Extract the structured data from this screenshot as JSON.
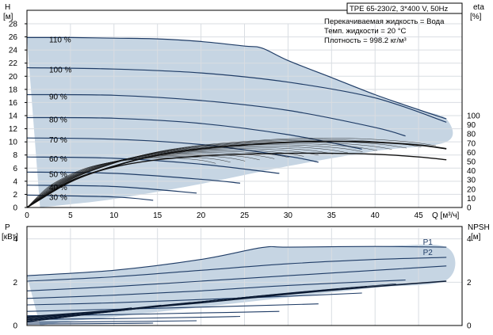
{
  "pump_model": "TPE 65-230/2, 3*400 V, 50Hz",
  "fluid_info": [
    "Перекачиваемая жидкость = Вода",
    "Темп. жидкости = 20 °C",
    "Плотность = 998.2 кг/м³"
  ],
  "colors": {
    "area_fill": "#c6d5e3",
    "curve": "#1f3c66",
    "efficiency_curve": "#111111",
    "grid": "#d9dde2",
    "axis": "#000000"
  },
  "chart_data": [
    {
      "type": "line",
      "name": "head-chart",
      "xlabel": "Q [м³/ч]",
      "ylabel_left": [
        "H",
        "[м]"
      ],
      "ylabel_right": [
        "eta",
        "[%]"
      ],
      "xlim": [
        0,
        50
      ],
      "ylim": [
        0,
        28
      ],
      "xticks": [
        0,
        5,
        10,
        15,
        20,
        25,
        30,
        35,
        40,
        45
      ],
      "yticks": [
        0,
        2,
        4,
        6,
        8,
        10,
        12,
        14,
        16,
        18,
        20,
        22,
        24,
        26,
        28
      ],
      "eta_ticks": [
        0,
        10,
        20,
        30,
        40,
        50,
        60,
        70,
        80,
        90,
        100
      ],
      "eta_range": [
        0,
        100
      ],
      "grid": true,
      "series": [
        {
          "name": "110 %",
          "x": [
            0,
            5,
            10,
            15,
            20,
            25,
            27,
            30,
            35,
            40,
            45,
            48.2
          ],
          "y": [
            25.9,
            25.9,
            25.8,
            25.7,
            25.3,
            24.6,
            24.3,
            22.4,
            19.8,
            17.2,
            14.9,
            13.5
          ]
        },
        {
          "name": "100 %",
          "x": [
            0,
            10,
            20,
            30,
            40,
            48.2
          ],
          "y": [
            21.3,
            21.1,
            20.5,
            19.1,
            16.7,
            13.0
          ]
        },
        {
          "name": "90 %",
          "x": [
            0,
            10,
            20,
            30,
            40,
            43.5
          ],
          "y": [
            17.2,
            17.1,
            16.3,
            14.8,
            12.2,
            10.9
          ]
        },
        {
          "name": "80 %",
          "x": [
            0,
            10,
            20,
            30,
            38.5
          ],
          "y": [
            13.7,
            13.6,
            12.8,
            11.1,
            8.9
          ]
        },
        {
          "name": "70 %",
          "x": [
            0,
            10,
            20,
            30,
            33.5
          ],
          "y": [
            10.6,
            10.4,
            9.6,
            7.8,
            6.9
          ]
        },
        {
          "name": "60 %",
          "x": [
            0,
            10,
            20,
            29
          ],
          "y": [
            7.7,
            7.5,
            6.6,
            5.2
          ]
        },
        {
          "name": "50 %",
          "x": [
            0,
            10,
            20,
            24.5
          ],
          "y": [
            5.4,
            5.2,
            4.3,
            3.7
          ]
        },
        {
          "name": "40 %",
          "x": [
            0,
            10,
            19.5
          ],
          "y": [
            3.4,
            3.2,
            2.2
          ]
        },
        {
          "name": "30 %",
          "x": [
            0,
            10,
            14.5
          ],
          "y": [
            1.9,
            1.6,
            1.1
          ]
        }
      ],
      "efficiency": [
        {
          "x": [
            0,
            5,
            10,
            15,
            20,
            25,
            30,
            35,
            40,
            45,
            48.2
          ],
          "y": [
            0,
            28,
            45,
            57,
            64,
            68,
            71,
            72,
            71,
            68,
            64
          ]
        },
        {
          "x": [
            0,
            5,
            10,
            15,
            20,
            25,
            30,
            35,
            40,
            45,
            48.2
          ],
          "y": [
            0,
            29,
            44,
            52,
            56,
            58,
            59,
            59,
            58,
            55,
            52
          ]
        }
      ],
      "operating_area": {
        "x": [
          0,
          5,
          10,
          15,
          20,
          25,
          27,
          30,
          35,
          40,
          45,
          48.2,
          48.2,
          40,
          30,
          20,
          10,
          5,
          1.5
        ],
        "y": [
          25.9,
          25.9,
          25.8,
          25.7,
          25.3,
          24.6,
          24.3,
          22.4,
          19.8,
          17.2,
          14.9,
          13.5,
          10,
          8.6,
          6.3,
          3.6,
          1.3,
          0.5,
          0
        ]
      }
    },
    {
      "type": "line",
      "name": "power-chart",
      "xlim": [
        0,
        50
      ],
      "ylim": [
        0,
        4.5
      ],
      "ylabel_left": [
        "P",
        "[кВт]"
      ],
      "ylabel_right": [
        "NPSH",
        "[м]"
      ],
      "yticks": [
        0,
        2,
        4
      ],
      "npsh_ticks": [
        0,
        2,
        4
      ],
      "grid": true,
      "series": [
        {
          "name": "P1",
          "x": [
            0,
            10,
            20,
            27,
            30,
            40,
            48.2
          ],
          "y": [
            2.3,
            2.55,
            3.05,
            3.6,
            3.62,
            3.65,
            3.62
          ]
        },
        {
          "name": "P2",
          "x": [
            0,
            10,
            20,
            30,
            40,
            48.2
          ],
          "y": [
            2.05,
            2.25,
            2.55,
            2.85,
            3.05,
            3.15
          ]
        },
        {
          "name": "",
          "x": [
            0,
            10,
            20,
            30,
            40,
            48.2
          ],
          "y": [
            1.6,
            1.8,
            2.05,
            2.3,
            2.55,
            2.75
          ]
        },
        {
          "name": "",
          "x": [
            0,
            10,
            20,
            30,
            43.5
          ],
          "y": [
            1.25,
            1.4,
            1.6,
            1.85,
            2.1
          ]
        },
        {
          "name": "",
          "x": [
            0,
            10,
            20,
            30,
            38.5
          ],
          "y": [
            0.95,
            1.05,
            1.2,
            1.35,
            1.5
          ]
        },
        {
          "name": "",
          "x": [
            0,
            10,
            20,
            33.5
          ],
          "y": [
            0.65,
            0.75,
            0.85,
            1.0
          ]
        },
        {
          "name": "",
          "x": [
            0,
            10,
            20,
            29
          ],
          "y": [
            0.45,
            0.5,
            0.58,
            0.65
          ]
        },
        {
          "name": "",
          "x": [
            0,
            10,
            20,
            24.5
          ],
          "y": [
            0.28,
            0.32,
            0.38,
            0.42
          ]
        },
        {
          "name": "",
          "x": [
            0,
            10,
            19.5
          ],
          "y": [
            0.15,
            0.18,
            0.22
          ]
        },
        {
          "name": "",
          "x": [
            0,
            10,
            14.5
          ],
          "y": [
            0.07,
            0.09,
            0.11
          ]
        }
      ],
      "npsh": {
        "x": [
          0,
          10,
          20,
          30,
          40,
          48.2
        ],
        "y": [
          0.4,
          0.7,
          1.05,
          1.45,
          1.8,
          2.05
        ]
      },
      "operating_area": {
        "x": [
          0,
          10,
          20,
          27,
          30,
          40,
          48.2,
          48.2,
          40,
          30,
          20,
          10,
          5,
          1.5
        ],
        "y": [
          2.3,
          2.55,
          3.05,
          3.6,
          3.62,
          3.65,
          3.62,
          2.1,
          1.75,
          1.3,
          0.85,
          0.4,
          0.2,
          0
        ]
      }
    }
  ]
}
